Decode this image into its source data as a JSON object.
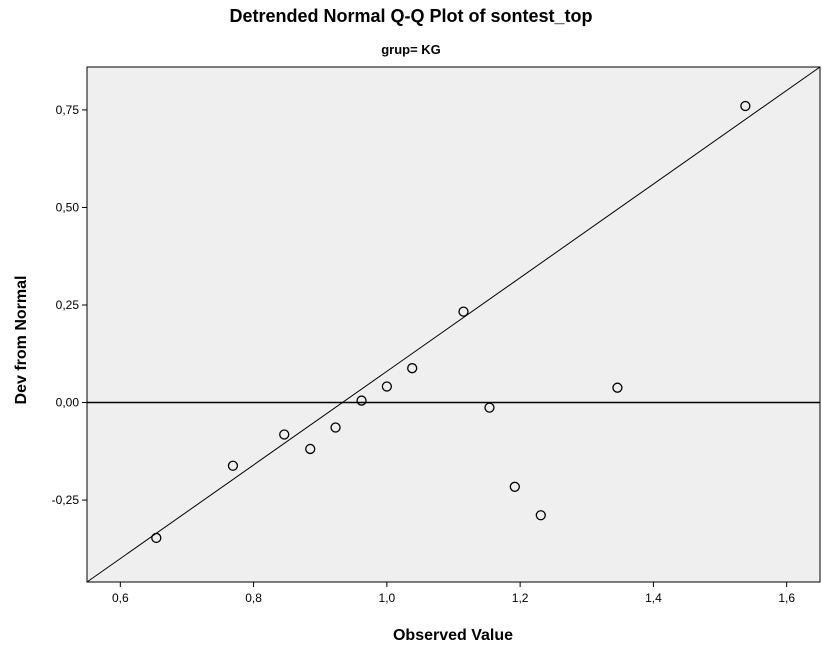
{
  "chart_data": {
    "type": "scatter",
    "title": "Detrended Normal Q-Q Plot of sontest_top",
    "subtitle": "grup= KG",
    "xlabel": "Observed Value",
    "ylabel": "Dev from Normal",
    "xlim": [
      0.55,
      1.65
    ],
    "ylim": [
      -0.46,
      0.86
    ],
    "x_ticks": [
      0.6,
      0.8,
      1.0,
      1.2,
      1.4,
      1.6
    ],
    "x_tick_labels": [
      "0,6",
      "0,8",
      "1,0",
      "1,2",
      "1,4",
      "1,6"
    ],
    "y_ticks": [
      -0.25,
      0.0,
      0.25,
      0.5,
      0.75
    ],
    "y_tick_labels": [
      "-0,25",
      "0,00",
      "0,25",
      "0,50",
      "0,75"
    ],
    "points": [
      {
        "x": 0.654,
        "y": -0.347
      },
      {
        "x": 0.769,
        "y": -0.162
      },
      {
        "x": 0.846,
        "y": -0.082
      },
      {
        "x": 0.885,
        "y": -0.119
      },
      {
        "x": 0.923,
        "y": -0.064
      },
      {
        "x": 0.962,
        "y": 0.005
      },
      {
        "x": 1.0,
        "y": 0.041
      },
      {
        "x": 1.038,
        "y": 0.088
      },
      {
        "x": 1.115,
        "y": 0.233
      },
      {
        "x": 1.154,
        "y": -0.013
      },
      {
        "x": 1.192,
        "y": -0.216
      },
      {
        "x": 1.231,
        "y": -0.289
      },
      {
        "x": 1.346,
        "y": 0.038
      },
      {
        "x": 1.538,
        "y": 0.76
      }
    ],
    "reference_lines": [
      {
        "type": "horizontal",
        "y": 0.0
      },
      {
        "type": "trend",
        "x1": 0.55,
        "y1": -0.46,
        "x2": 1.65,
        "y2": 0.86
      }
    ],
    "colors": {
      "plot_background": "#efefef",
      "point_stroke": "#000000",
      "line": "#000000"
    }
  }
}
